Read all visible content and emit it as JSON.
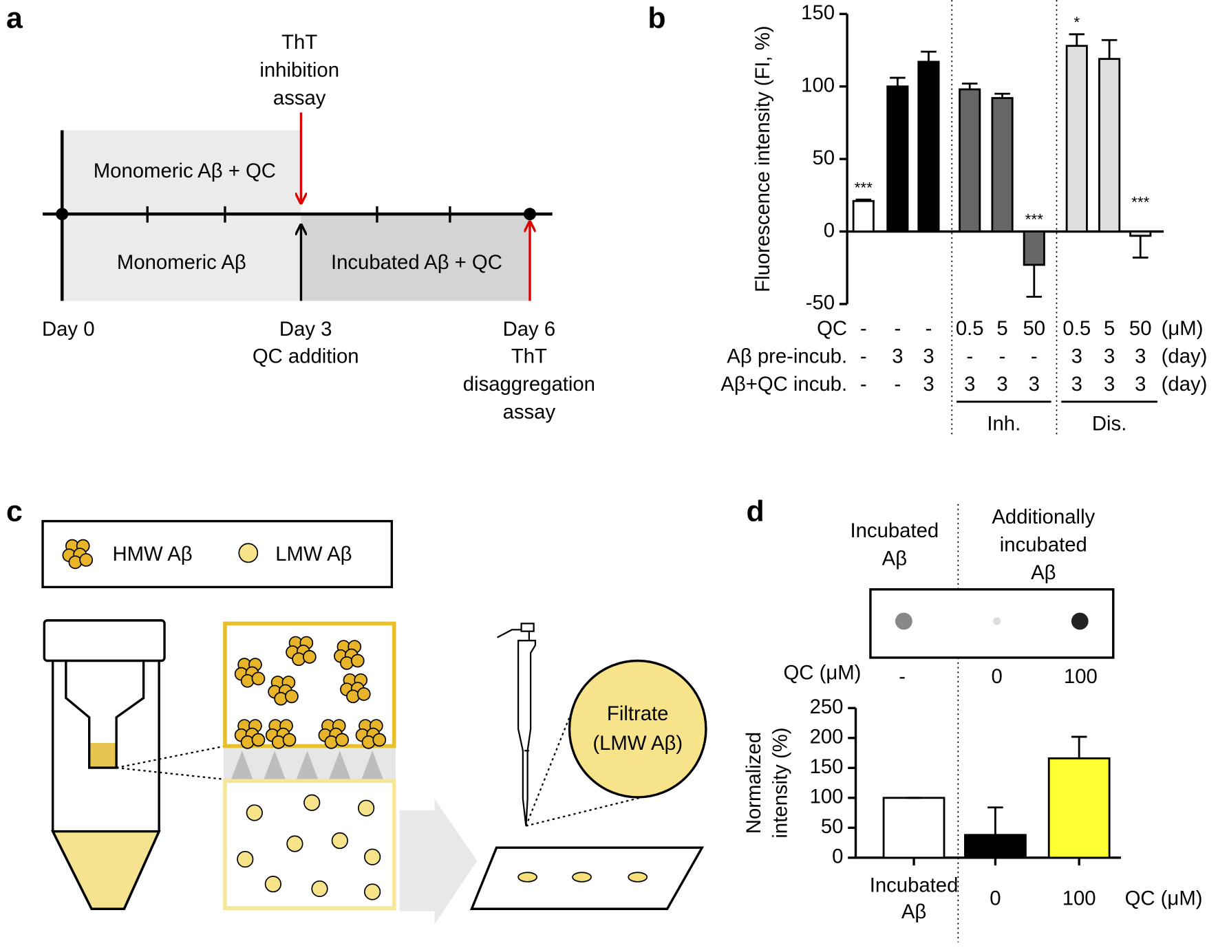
{
  "panels": {
    "a": {
      "label": "a",
      "inhibition_label": [
        "ThT",
        "inhibition",
        "assay"
      ],
      "upper_left": "Monomeric Aβ + QC",
      "lower_left": "Monomeric Aβ",
      "lower_right": "Incubated Aβ + QC",
      "day0": "Day 0",
      "day3": [
        "Day 3",
        "QC addition"
      ],
      "day6": [
        "Day 6",
        "ThT",
        "disaggregation",
        "assay"
      ]
    },
    "c": {
      "label": "c",
      "legend": [
        "HMW Aβ",
        "LMW Aβ"
      ],
      "filtrate": [
        "Filtrate",
        "(LMW Aβ)"
      ]
    },
    "d": {
      "label": "d",
      "blot_left": [
        "Incubated",
        "Aβ"
      ],
      "blot_right": [
        "Additionally",
        "incubated",
        "Aβ"
      ],
      "qc_label": "QC (μM)",
      "qc_values": [
        "-",
        "0",
        "100"
      ]
    }
  },
  "chart_data": [
    {
      "type": "bar",
      "panel_label": "b",
      "ylabel": "Fluorescence intensity (FI, %)",
      "values": [
        21,
        100,
        117,
        98,
        92,
        -23,
        128,
        119,
        -3
      ],
      "errors": [
        1,
        6,
        7,
        4,
        3,
        22,
        8,
        13,
        15
      ],
      "colors": [
        "#ffffff",
        "#000000",
        "#000000",
        "#666666",
        "#666666",
        "#666666",
        "#e0e0e0",
        "#e0e0e0",
        "#e0e0e0"
      ],
      "significance": [
        "***",
        null,
        null,
        null,
        null,
        "***",
        "*",
        null,
        "***"
      ],
      "ylim": [
        -50,
        150
      ],
      "yticks": [
        -50,
        0,
        50,
        100,
        150
      ],
      "table": [
        {
          "label": "QC",
          "cells": [
            "-",
            "-",
            "-",
            "0.5",
            "5",
            "50",
            "0.5",
            "5",
            "50"
          ],
          "unit": "(μM)"
        },
        {
          "label": "Aβ pre-incub.",
          "cells": [
            "-",
            "3",
            "3",
            "-",
            "-",
            "-",
            "3",
            "3",
            "3"
          ],
          "unit": "(day)"
        },
        {
          "label": "Aβ+QC incub.",
          "cells": [
            "-",
            "-",
            "3",
            "3",
            "3",
            "3",
            "3",
            "3",
            "3"
          ],
          "unit": "(day)"
        }
      ],
      "groups": [
        "Inh.",
        "Dis."
      ]
    },
    {
      "type": "bar",
      "ylabel": "Normalized\nintensity (%)",
      "categories": [
        "Incubated\nAβ",
        "0",
        "100"
      ],
      "x_unit_label": "QC (μM)",
      "values": [
        100,
        38,
        166
      ],
      "errors": [
        0,
        46,
        36
      ],
      "colors": [
        "#ffffff",
        "#000000",
        "#ffff33"
      ],
      "ylim": [
        0,
        250
      ],
      "yticks": [
        0,
        50,
        100,
        150,
        200,
        250
      ]
    }
  ]
}
